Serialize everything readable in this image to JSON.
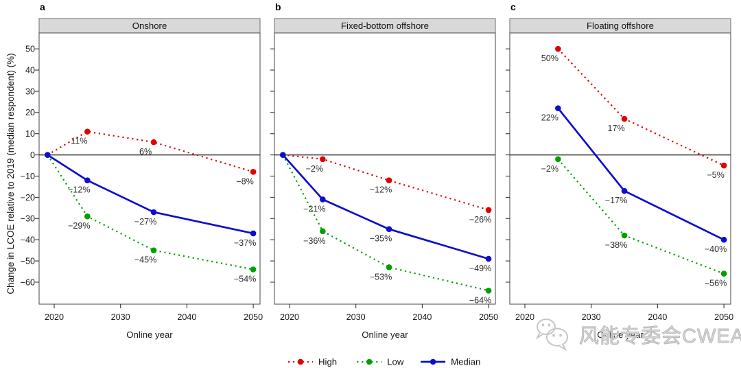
{
  "figure": {
    "ylabel": "Change in LCOE relative to 2019 (median respondent) (%)",
    "xlabel": "Online year"
  },
  "chart_data": [
    {
      "type": "line",
      "panel": "a",
      "title": "Onshore",
      "x": [
        2019,
        2025,
        2035,
        2050
      ],
      "xticks": [
        2020,
        2030,
        2040,
        2050
      ],
      "yticks": [
        50,
        40,
        30,
        20,
        10,
        0,
        -10,
        -20,
        -30,
        -40,
        -50,
        -60
      ],
      "xlim": [
        2017.7,
        2052.5
      ],
      "ylim": [
        -71,
        57.5
      ],
      "grid": false,
      "zero_line": true,
      "series": [
        {
          "name": "High",
          "color": "#e00000",
          "line_style": "dotted",
          "values": [
            0,
            11,
            6,
            -8
          ],
          "labels": [
            "",
            "11%",
            "6%",
            "−8%"
          ]
        },
        {
          "name": "Low",
          "color": "#00a000",
          "line_style": "dotted",
          "values": [
            0,
            -29,
            -45,
            -54
          ],
          "labels": [
            "",
            "−29%",
            "−45%",
            "−54%"
          ]
        },
        {
          "name": "Median",
          "color": "#0d0dd0",
          "line_style": "solid",
          "values": [
            0,
            -12,
            -27,
            -37
          ],
          "labels": [
            "",
            "−12%",
            "−27%",
            "−37%"
          ]
        }
      ]
    },
    {
      "type": "line",
      "panel": "b",
      "title": "Fixed-bottom offshore",
      "x": [
        2019,
        2025,
        2035,
        2050
      ],
      "xticks": [
        2020,
        2030,
        2040,
        2050
      ],
      "yticks": [
        50,
        40,
        30,
        20,
        10,
        0,
        -10,
        -20,
        -30,
        -40,
        -50,
        -60
      ],
      "xlim": [
        2017.7,
        2052.5
      ],
      "ylim": [
        -71,
        57.5
      ],
      "grid": false,
      "zero_line": true,
      "series": [
        {
          "name": "High",
          "color": "#e00000",
          "line_style": "dotted",
          "values": [
            0,
            -2,
            -12,
            -26
          ],
          "labels": [
            "",
            "−2%",
            "−12%",
            "−26%"
          ]
        },
        {
          "name": "Low",
          "color": "#00a000",
          "line_style": "dotted",
          "values": [
            0,
            -36,
            -53,
            -64
          ],
          "labels": [
            "",
            "−36%",
            "−53%",
            "−64%"
          ]
        },
        {
          "name": "Median",
          "color": "#0d0dd0",
          "line_style": "solid",
          "values": [
            0,
            -21,
            -35,
            -49
          ],
          "labels": [
            "",
            "−21%",
            "−35%",
            "−49%"
          ]
        }
      ]
    },
    {
      "type": "line",
      "panel": "c",
      "title": "Floating offshore",
      "x": [
        2025,
        2035,
        2050
      ],
      "xticks": [
        2020,
        2030,
        2040,
        2050
      ],
      "yticks": [
        50,
        40,
        30,
        20,
        10,
        0,
        -10,
        -20,
        -30,
        -40,
        -50,
        -60
      ],
      "xlim": [
        2017.7,
        2052.5
      ],
      "ylim": [
        -71,
        57.5
      ],
      "grid": false,
      "zero_line": true,
      "series": [
        {
          "name": "High",
          "color": "#e00000",
          "line_style": "dotted",
          "values": [
            50,
            17,
            -5
          ],
          "labels": [
            "50%",
            "17%",
            "−5%"
          ]
        },
        {
          "name": "Low",
          "color": "#00a000",
          "line_style": "dotted",
          "values": [
            -2,
            -38,
            -56
          ],
          "labels": [
            "−2%",
            "−38%",
            "−56%"
          ]
        },
        {
          "name": "Median",
          "color": "#0d0dd0",
          "line_style": "solid",
          "values": [
            22,
            -17,
            -40
          ],
          "labels": [
            "22%",
            "−17%",
            "−40%"
          ]
        }
      ]
    }
  ],
  "legend": {
    "position": "bottom-center",
    "items": [
      {
        "label": "High",
        "color": "#e00000",
        "line_style": "dotted"
      },
      {
        "label": "Low",
        "color": "#00a000",
        "line_style": "dotted"
      },
      {
        "label": "Median",
        "color": "#0d0dd0",
        "line_style": "solid"
      }
    ]
  },
  "watermark": {
    "icon": "wechat-icon",
    "text": "风能专委会CWEA"
  }
}
